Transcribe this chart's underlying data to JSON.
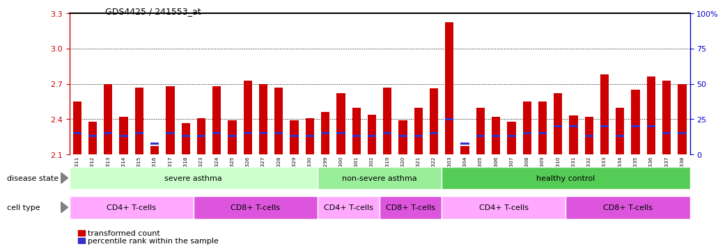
{
  "title": "GDS4425 / 241553_at",
  "samples": [
    "GSM788311",
    "GSM788312",
    "GSM788313",
    "GSM788314",
    "GSM788315",
    "GSM788316",
    "GSM788317",
    "GSM788318",
    "GSM788323",
    "GSM788324",
    "GSM788325",
    "GSM788326",
    "GSM788327",
    "GSM788328",
    "GSM788329",
    "GSM788330",
    "GSM788299",
    "GSM788300",
    "GSM788301",
    "GSM788302",
    "GSM788319",
    "GSM788320",
    "GSM788321",
    "GSM788322",
    "GSM788303",
    "GSM788304",
    "GSM788305",
    "GSM788306",
    "GSM788307",
    "GSM788308",
    "GSM788309",
    "GSM788310",
    "GSM788331",
    "GSM788332",
    "GSM788333",
    "GSM788334",
    "GSM788335",
    "GSM788336",
    "GSM788337",
    "GSM788338"
  ],
  "transformed_count": [
    2.55,
    2.38,
    2.7,
    2.42,
    2.67,
    2.17,
    2.68,
    2.37,
    2.41,
    2.68,
    2.39,
    2.73,
    2.7,
    2.67,
    2.39,
    2.41,
    2.46,
    2.62,
    2.5,
    2.44,
    2.67,
    2.39,
    2.5,
    2.66,
    3.22,
    2.17,
    2.5,
    2.42,
    2.38,
    2.55,
    2.55,
    2.62,
    2.43,
    2.42,
    2.78,
    2.5,
    2.65,
    2.76,
    2.73,
    2.7
  ],
  "percentile_rank": [
    15,
    13,
    15,
    13,
    15,
    8,
    15,
    13,
    13,
    15,
    13,
    15,
    15,
    15,
    13,
    13,
    15,
    15,
    13,
    13,
    15,
    13,
    13,
    15,
    25,
    8,
    13,
    13,
    13,
    15,
    15,
    20,
    20,
    13,
    20,
    13,
    20,
    20,
    15,
    15
  ],
  "ymin": 2.1,
  "ymax": 3.3,
  "yticks": [
    2.1,
    2.4,
    2.7,
    3.0,
    3.3
  ],
  "ytick_labels": [
    "2.1",
    "2.4",
    "2.7",
    "3.0",
    "3.3"
  ],
  "right_yticks": [
    0,
    25,
    50,
    75,
    100
  ],
  "right_ytick_labels": [
    "0",
    "25",
    "50",
    "75",
    "100%"
  ],
  "bar_color": "#cc0000",
  "percentile_color": "#3333cc",
  "bg_color": "#ffffff",
  "disease_state_labels": [
    {
      "label": "severe asthma",
      "start": 0,
      "end": 15,
      "color": "#ccffcc"
    },
    {
      "label": "non-severe asthma",
      "start": 16,
      "end": 23,
      "color": "#99ee99"
    },
    {
      "label": "healthy control",
      "start": 24,
      "end": 39,
      "color": "#55cc55"
    }
  ],
  "cell_type_labels": [
    {
      "label": "CD4+ T-cells",
      "start": 0,
      "end": 7,
      "color": "#ffaaff"
    },
    {
      "label": "CD8+ T-cells",
      "start": 8,
      "end": 15,
      "color": "#dd55dd"
    },
    {
      "label": "CD4+ T-cells",
      "start": 16,
      "end": 19,
      "color": "#ffaaff"
    },
    {
      "label": "CD8+ T-cells",
      "start": 20,
      "end": 23,
      "color": "#dd55dd"
    },
    {
      "label": "CD4+ T-cells",
      "start": 24,
      "end": 31,
      "color": "#ffaaff"
    },
    {
      "label": "CD8+ T-cells",
      "start": 32,
      "end": 39,
      "color": "#dd55dd"
    }
  ],
  "legend_items": [
    {
      "label": "transformed count",
      "color": "#cc0000"
    },
    {
      "label": "percentile rank within the sample",
      "color": "#3333cc"
    }
  ]
}
